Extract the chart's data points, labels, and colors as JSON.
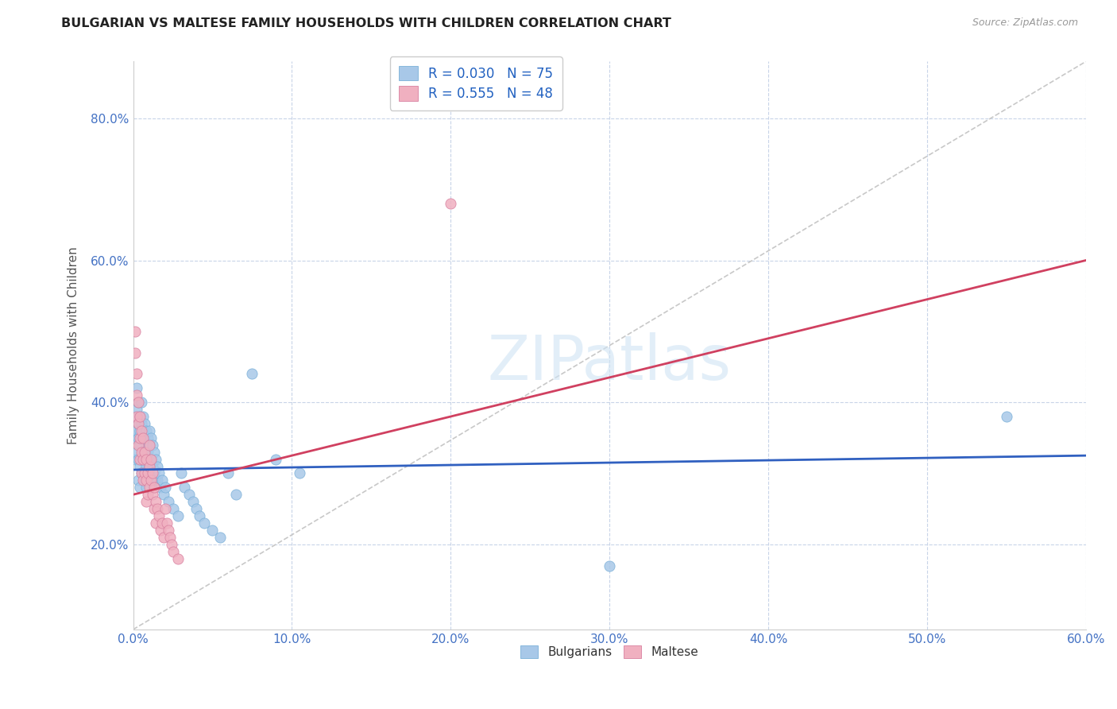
{
  "title": "BULGARIAN VS MALTESE FAMILY HOUSEHOLDS WITH CHILDREN CORRELATION CHART",
  "source": "Source: ZipAtlas.com",
  "ylabel": "Family Households with Children",
  "xlim": [
    0.0,
    0.6
  ],
  "ylim": [
    0.08,
    0.88
  ],
  "xticks": [
    0.0,
    0.1,
    0.2,
    0.3,
    0.4,
    0.5,
    0.6
  ],
  "yticks": [
    0.2,
    0.4,
    0.6,
    0.8
  ],
  "xtick_labels": [
    "0.0%",
    "10.0%",
    "20.0%",
    "30.0%",
    "40.0%",
    "50.0%",
    "60.0%"
  ],
  "ytick_labels": [
    "20.0%",
    "40.0%",
    "60.0%",
    "80.0%"
  ],
  "legend_line1": "R = 0.030   N = 75",
  "legend_line2": "R = 0.555   N = 48",
  "bottom_legend_1": "Bulgarians",
  "bottom_legend_2": "Maltese",
  "watermark": "ZIPatlas",
  "bg_color": "#ffffff",
  "grid_color": "#c8d4e8",
  "title_color": "#222222",
  "source_color": "#999999",
  "axis_tick_color": "#4472c4",
  "blue_scatter_color": "#a8c8e8",
  "pink_scatter_color": "#f0b0c0",
  "blue_line_color": "#3060c0",
  "pink_line_color": "#d04060",
  "ref_line_color": "#c8c8c8",
  "bulgarians_x": [
    0.001,
    0.001,
    0.001,
    0.002,
    0.002,
    0.002,
    0.002,
    0.003,
    0.003,
    0.003,
    0.003,
    0.003,
    0.004,
    0.004,
    0.004,
    0.004,
    0.004,
    0.005,
    0.005,
    0.005,
    0.005,
    0.005,
    0.006,
    0.006,
    0.006,
    0.006,
    0.007,
    0.007,
    0.007,
    0.007,
    0.008,
    0.008,
    0.008,
    0.008,
    0.009,
    0.009,
    0.009,
    0.01,
    0.01,
    0.01,
    0.011,
    0.011,
    0.011,
    0.012,
    0.012,
    0.013,
    0.013,
    0.014,
    0.014,
    0.015,
    0.015,
    0.016,
    0.017,
    0.018,
    0.019,
    0.02,
    0.022,
    0.025,
    0.028,
    0.03,
    0.032,
    0.035,
    0.038,
    0.04,
    0.042,
    0.045,
    0.05,
    0.055,
    0.06,
    0.065,
    0.075,
    0.09,
    0.105,
    0.3,
    0.55
  ],
  "bulgarians_y": [
    0.38,
    0.35,
    0.32,
    0.42,
    0.39,
    0.36,
    0.33,
    0.4,
    0.37,
    0.35,
    0.32,
    0.29,
    0.38,
    0.36,
    0.34,
    0.31,
    0.28,
    0.4,
    0.37,
    0.35,
    0.32,
    0.3,
    0.38,
    0.36,
    0.33,
    0.3,
    0.37,
    0.35,
    0.32,
    0.29,
    0.36,
    0.34,
    0.31,
    0.28,
    0.35,
    0.33,
    0.3,
    0.36,
    0.34,
    0.31,
    0.35,
    0.32,
    0.29,
    0.34,
    0.31,
    0.33,
    0.3,
    0.32,
    0.29,
    0.31,
    0.29,
    0.3,
    0.28,
    0.29,
    0.27,
    0.28,
    0.26,
    0.25,
    0.24,
    0.3,
    0.28,
    0.27,
    0.26,
    0.25,
    0.24,
    0.23,
    0.22,
    0.21,
    0.3,
    0.27,
    0.44,
    0.32,
    0.3,
    0.17,
    0.38
  ],
  "maltese_x": [
    0.001,
    0.001,
    0.002,
    0.002,
    0.002,
    0.003,
    0.003,
    0.003,
    0.004,
    0.004,
    0.004,
    0.005,
    0.005,
    0.005,
    0.006,
    0.006,
    0.006,
    0.007,
    0.007,
    0.008,
    0.008,
    0.008,
    0.009,
    0.009,
    0.01,
    0.01,
    0.01,
    0.011,
    0.011,
    0.012,
    0.012,
    0.013,
    0.013,
    0.014,
    0.014,
    0.015,
    0.016,
    0.017,
    0.018,
    0.019,
    0.02,
    0.021,
    0.022,
    0.023,
    0.024,
    0.025,
    0.028,
    0.2
  ],
  "maltese_y": [
    0.5,
    0.47,
    0.44,
    0.41,
    0.38,
    0.4,
    0.37,
    0.34,
    0.38,
    0.35,
    0.32,
    0.36,
    0.33,
    0.3,
    0.35,
    0.32,
    0.29,
    0.33,
    0.3,
    0.32,
    0.29,
    0.26,
    0.3,
    0.27,
    0.34,
    0.31,
    0.28,
    0.32,
    0.29,
    0.3,
    0.27,
    0.28,
    0.25,
    0.26,
    0.23,
    0.25,
    0.24,
    0.22,
    0.23,
    0.21,
    0.25,
    0.23,
    0.22,
    0.21,
    0.2,
    0.19,
    0.18,
    0.68
  ],
  "blue_trend_x": [
    0.0,
    0.6
  ],
  "blue_trend_y": [
    0.305,
    0.325
  ],
  "pink_trend_x": [
    0.0,
    0.6
  ],
  "pink_trend_y": [
    0.27,
    0.6
  ],
  "ref_line_x": [
    0.0,
    0.6
  ],
  "ref_line_y": [
    0.08,
    0.88
  ]
}
